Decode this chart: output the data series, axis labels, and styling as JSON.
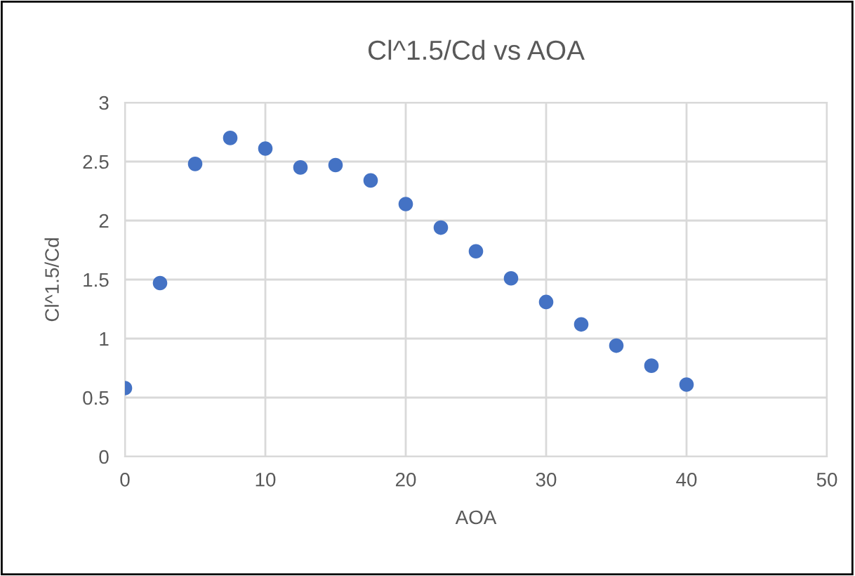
{
  "chart_data": {
    "type": "scatter",
    "title": "Cl^1.5/Cd vs AOA",
    "xlabel": "AOA",
    "ylabel": "Cl^1.5/Cd",
    "x": [
      0,
      2.5,
      5,
      7.5,
      10,
      12.5,
      15,
      17.5,
      20,
      22.5,
      25,
      27.5,
      30,
      32.5,
      35,
      37.5,
      40
    ],
    "values": [
      0.58,
      1.47,
      2.48,
      2.7,
      2.61,
      2.45,
      2.47,
      2.34,
      2.14,
      1.94,
      1.74,
      1.51,
      1.31,
      1.12,
      0.94,
      0.77,
      0.61
    ],
    "color": "#4472c4",
    "marker": "circle",
    "xlim": [
      0,
      50
    ],
    "xticks": [
      0,
      10,
      20,
      30,
      40,
      50
    ],
    "ylim": [
      0,
      3
    ],
    "yticks": [
      0,
      0.5,
      1,
      1.5,
      2,
      2.5,
      3
    ],
    "grid": true
  }
}
